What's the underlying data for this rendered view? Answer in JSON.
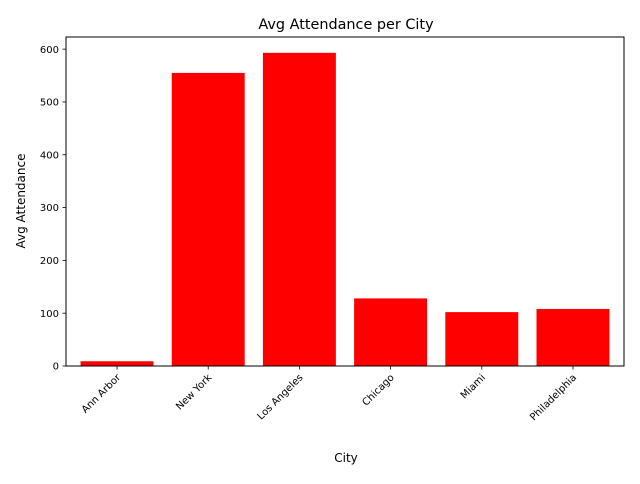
{
  "chart_data": {
    "type": "bar",
    "title": "Avg Attendance per City",
    "xlabel": "City",
    "ylabel": "Avg Attendance",
    "categories": [
      "Ann Arbor",
      "New York",
      "Los Angeles",
      "Chicago",
      "Miami",
      "Philadelphia"
    ],
    "values": [
      9,
      555,
      593,
      128,
      102,
      108
    ],
    "ylim": [
      0,
      623
    ],
    "yticks": [
      0,
      100,
      200,
      300,
      400,
      500,
      600
    ],
    "bar_color": "#ff0000",
    "grid": false,
    "legend": "none"
  }
}
